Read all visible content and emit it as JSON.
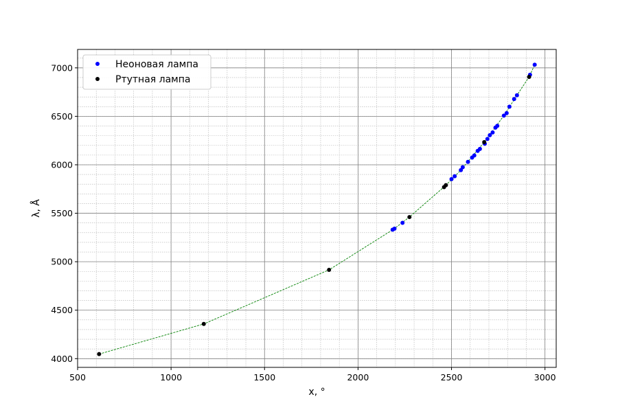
{
  "chart_data": {
    "type": "scatter",
    "xlabel": "x, °",
    "ylabel": "λ, Å",
    "xlim": [
      500,
      3060
    ],
    "ylim": [
      3910,
      7190
    ],
    "xticks": [
      500,
      1000,
      1500,
      2000,
      2500,
      3000
    ],
    "yticks": [
      4000,
      4500,
      5000,
      5500,
      6000,
      6500,
      7000
    ],
    "grid": true,
    "minor_grid": true,
    "legend_position": "top-left",
    "series": [
      {
        "name": "Неоновая лампа",
        "color": "#0000ff",
        "marker": "circle",
        "points": [
          [
            2185,
            5330
          ],
          [
            2195,
            5341
          ],
          [
            2238,
            5401
          ],
          [
            2500,
            5852
          ],
          [
            2517,
            5882
          ],
          [
            2550,
            5945
          ],
          [
            2560,
            5975
          ],
          [
            2588,
            6030
          ],
          [
            2610,
            6074
          ],
          [
            2622,
            6096
          ],
          [
            2640,
            6143
          ],
          [
            2652,
            6164
          ],
          [
            2678,
            6217
          ],
          [
            2692,
            6266
          ],
          [
            2705,
            6305
          ],
          [
            2720,
            6334
          ],
          [
            2735,
            6383
          ],
          [
            2745,
            6402
          ],
          [
            2780,
            6507
          ],
          [
            2795,
            6533
          ],
          [
            2810,
            6599
          ],
          [
            2835,
            6678
          ],
          [
            2850,
            6717
          ],
          [
            2920,
            6929
          ],
          [
            2945,
            7032
          ]
        ]
      },
      {
        "name": "Ртутная лампа",
        "color": "#000000",
        "marker": "circle",
        "points": [
          [
            615,
            4047
          ],
          [
            1175,
            4358
          ],
          [
            1845,
            4916
          ],
          [
            2275,
            5461
          ],
          [
            2460,
            5770
          ],
          [
            2470,
            5790
          ],
          [
            2675,
            6234
          ],
          [
            2915,
            6907
          ]
        ]
      }
    ],
    "fit_line": {
      "color": "#008000",
      "style": "dashed",
      "points": [
        [
          615,
          4047
        ],
        [
          1175,
          4358
        ],
        [
          1845,
          4916
        ],
        [
          2190,
          5335
        ],
        [
          2275,
          5461
        ],
        [
          2465,
          5780
        ],
        [
          2550,
          5945
        ],
        [
          2675,
          6234
        ],
        [
          2780,
          6507
        ],
        [
          2850,
          6717
        ],
        [
          2915,
          6907
        ],
        [
          2945,
          7032
        ]
      ]
    }
  }
}
